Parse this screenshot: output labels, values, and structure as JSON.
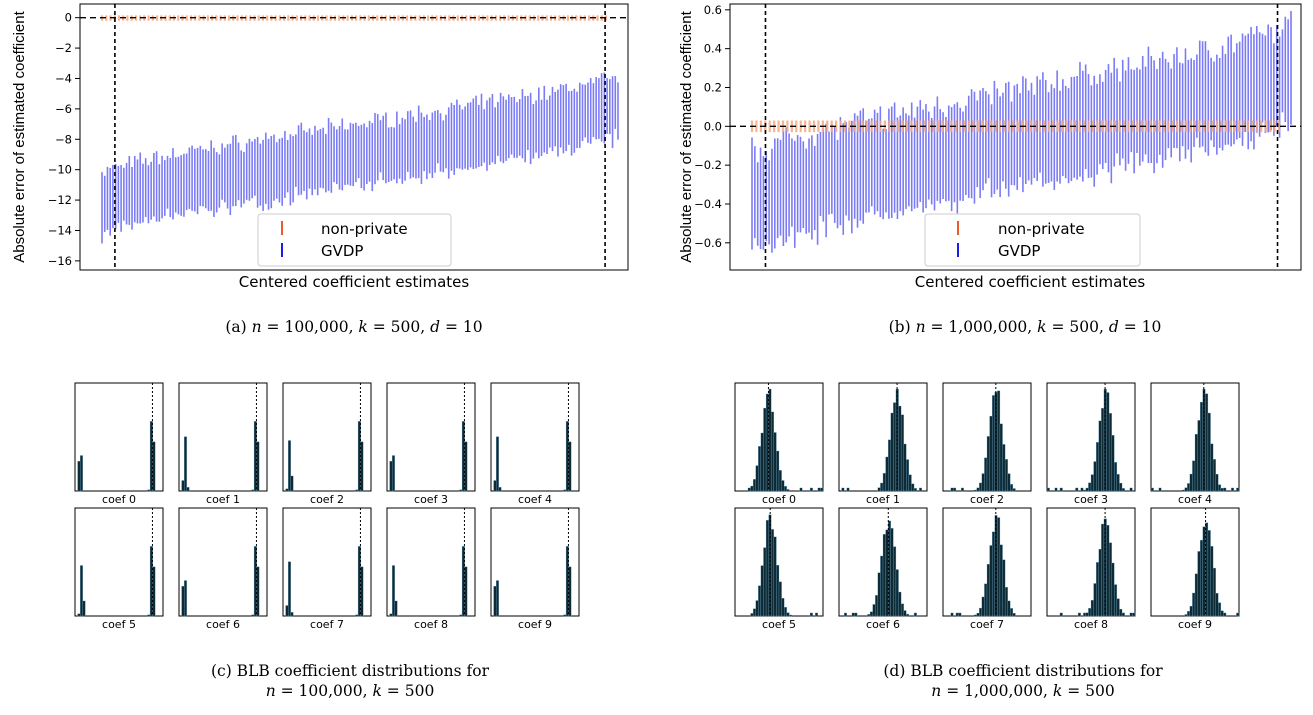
{
  "captions": {
    "a": "(a) n = 100,000, k = 500, d = 10",
    "b": "(b) n = 1,000,000, k = 500, d = 10",
    "c_line1": "(c) BLB coefficient distributions for",
    "c_line2": "n = 100,000, k = 500",
    "d_line1": "(d) BLB coefficient distributions for",
    "d_line2": "n = 1,000,000, k = 500"
  },
  "colors": {
    "gvdp": "#7b7bf5",
    "non_private": "#f4a77f",
    "hist": "#0e2a35",
    "legend_np": "#f05a28",
    "legend_gvdp": "#1c1cf0"
  },
  "chart_data": [
    {
      "type": "errorbar",
      "panel": "a",
      "xlabel": "Centered coefficient estimates",
      "ylabel": "Absolute error of estimated coefficient",
      "ylim": [
        -16.6,
        0.9
      ],
      "yticks": [
        0,
        -2,
        -4,
        -6,
        -8,
        -10,
        -12,
        -14,
        -16
      ],
      "ytick_labels": [
        "0",
        "−2",
        "−4",
        "−6",
        "−8",
        "−10",
        "−12",
        "−14",
        "−16"
      ],
      "legend": [
        "non-private",
        "GVDP"
      ],
      "legend_position": "lower center",
      "reference_lines": {
        "horizontal": 0,
        "vertical_percentiles": [
          2.5,
          97.5
        ]
      },
      "series": [
        {
          "name": "non-private",
          "lower": -0.2,
          "upper": 0.15
        },
        {
          "name": "GVDP",
          "n_intervals": 500,
          "center_range": [
            -12.5,
            -5.5
          ],
          "half_width": 2.0
        }
      ]
    },
    {
      "type": "errorbar",
      "panel": "b",
      "xlabel": "Centered coefficient estimates",
      "ylabel": "Absolute error of estimated coefficient",
      "ylim": [
        -0.74,
        0.63
      ],
      "yticks": [
        0.6,
        0.4,
        0.2,
        0.0,
        -0.2,
        -0.4,
        -0.6
      ],
      "ytick_labels": [
        "0.6",
        "0.4",
        "0.2",
        "0.0",
        "−0.2",
        "−0.4",
        "−0.6"
      ],
      "legend": [
        "non-private",
        "GVDP"
      ],
      "legend_position": "lower center",
      "reference_lines": {
        "horizontal": 0,
        "vertical_percentiles": [
          2.5,
          97.5
        ]
      },
      "series": [
        {
          "name": "non-private",
          "lower": -0.03,
          "upper": 0.03
        },
        {
          "name": "GVDP",
          "n_intervals": 500,
          "center_range": [
            -0.42,
            0.3
          ],
          "half_width": 0.25
        }
      ]
    },
    {
      "type": "histogram",
      "panel": "c",
      "labels": [
        "coef 0",
        "coef 1",
        "coef 2",
        "coef 3",
        "coef 4",
        "coef 5",
        "coef 6",
        "coef 7",
        "coef 8",
        "coef 9"
      ],
      "shape": "bimodal",
      "modes": [
        0.06,
        0.88
      ],
      "mode_weights": [
        0.55,
        1.0
      ]
    },
    {
      "type": "histogram",
      "panel": "d",
      "labels": [
        "coef 0",
        "coef 1",
        "coef 2",
        "coef 3",
        "coef 4",
        "coef 5",
        "coef 6",
        "coef 7",
        "coef 8",
        "coef 9"
      ],
      "shape": "unimodal",
      "centers": [
        0.38,
        0.66,
        0.6,
        0.66,
        0.6,
        0.4,
        0.56,
        0.6,
        0.66,
        0.62
      ]
    }
  ]
}
